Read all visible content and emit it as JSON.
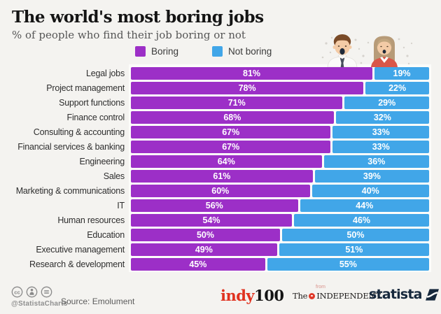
{
  "header": {
    "title": "The world's most boring jobs",
    "subtitle": "% of people who find their job boring or not"
  },
  "legend": [
    {
      "label": "Boring",
      "color": "#9c2fc7"
    },
    {
      "label": "Not boring",
      "color": "#41a6e8"
    }
  ],
  "chart_data": {
    "type": "bar",
    "orientation": "horizontal-stacked",
    "title": "The world's most boring jobs",
    "subtitle": "% of people who find their job boring or not",
    "xlim": [
      0,
      100
    ],
    "value_suffix": "%",
    "grid": false,
    "legend_position": "top",
    "categories": [
      "Legal jobs",
      "Project management",
      "Support functions",
      "Finance control",
      "Consulting & accounting",
      "Financial services & banking",
      "Engineering",
      "Sales",
      "Marketing & communications",
      "IT",
      "Human resources",
      "Education",
      "Executive management",
      "Research & development"
    ],
    "series": [
      {
        "name": "Boring",
        "color": "#9c2fc7",
        "values": [
          81,
          78,
          71,
          68,
          67,
          67,
          64,
          61,
          60,
          56,
          54,
          50,
          49,
          45
        ]
      },
      {
        "name": "Not boring",
        "color": "#41a6e8",
        "values": [
          19,
          22,
          29,
          32,
          33,
          33,
          36,
          39,
          40,
          44,
          46,
          50,
          51,
          55
        ]
      }
    ]
  },
  "footer": {
    "handle": "@StatistaCharts",
    "source": "Source: Emolument",
    "license_icons": [
      "cc-icon",
      "attribution-icon",
      "equal-icon"
    ],
    "logos": {
      "indy100": {
        "part1": "indy",
        "part2": "100",
        "color1": "#e0321f",
        "color2": "#141414"
      },
      "independent": {
        "from": "from",
        "the": "The",
        "name": "INDEPENDENT",
        "accent": "#e03a2a"
      },
      "statista": {
        "label": "statista",
        "color": "#16283c"
      }
    }
  }
}
